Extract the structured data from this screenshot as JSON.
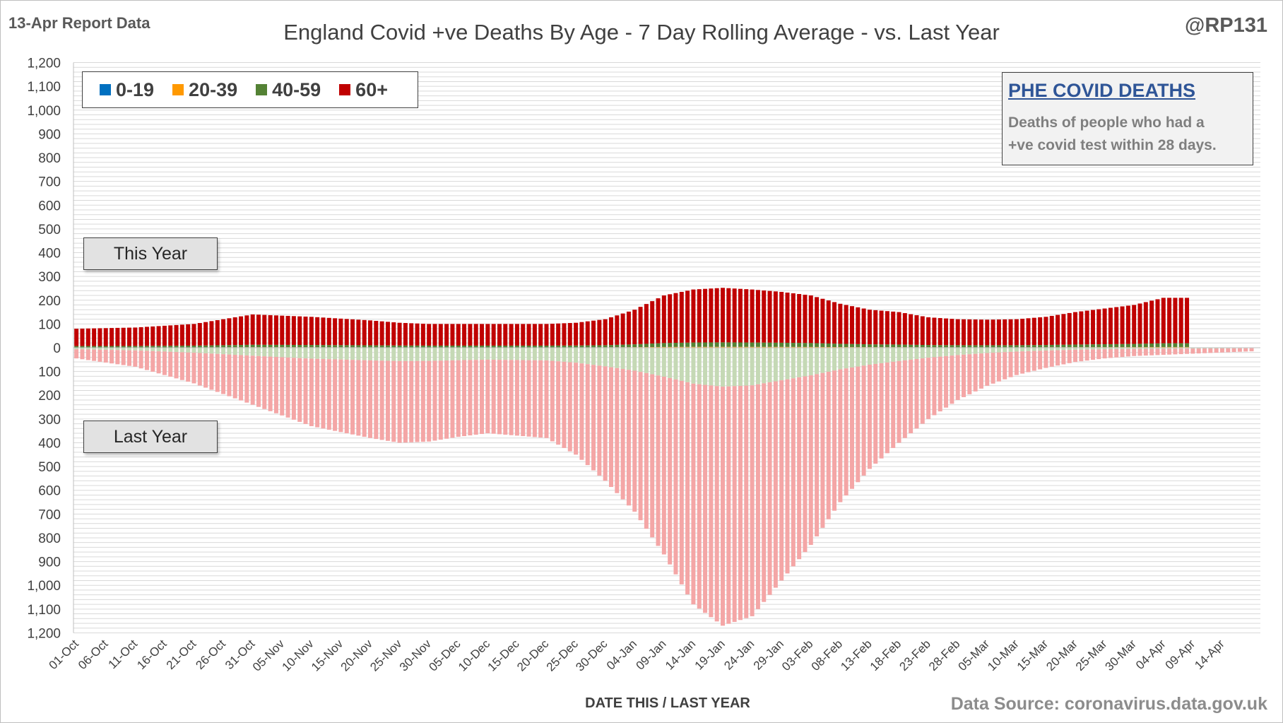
{
  "header": {
    "report_date": "13-Apr Report Data",
    "title": "England Covid +ve Deaths By Age - 7 Day Rolling Average - vs. Last Year",
    "handle": "@RP131"
  },
  "footer": {
    "source": "Data Source: coronavirus.data.gov.uk"
  },
  "annotations": {
    "this_year": "This Year",
    "last_year": "Last Year",
    "note_heading": "PHE COVID DEATHS",
    "note_line1": "Deaths of people who had a",
    "note_line2": "+ve covid test within 28 days."
  },
  "legend": [
    {
      "label": "0-19",
      "color": "#0070c0"
    },
    {
      "label": "20-39",
      "color": "#ff9900"
    },
    {
      "label": "40-59",
      "color": "#548235"
    },
    {
      "label": "60+",
      "color": "#c00000"
    }
  ],
  "chart_data": {
    "type": "bar",
    "title": "England Covid +ve Deaths By Age - 7 Day Rolling Average - vs. Last Year",
    "xlabel": "DATE THIS / LAST YEAR",
    "ylabel": "",
    "ylim": [
      -1200,
      1200
    ],
    "ytick_step": 100,
    "y_tick_labels": [
      "1,200",
      "1,100",
      "1,000",
      "900",
      "800",
      "700",
      "600",
      "500",
      "400",
      "300",
      "200",
      "100",
      "0",
      "100",
      "200",
      "300",
      "400",
      "500",
      "600",
      "700",
      "800",
      "900",
      "1,000",
      "1,100",
      "1,200"
    ],
    "x_tick_labels": [
      "01-Oct",
      "06-Oct",
      "11-Oct",
      "16-Oct",
      "21-Oct",
      "26-Oct",
      "31-Oct",
      "05-Nov",
      "10-Nov",
      "15-Nov",
      "20-Nov",
      "25-Nov",
      "30-Nov",
      "05-Dec",
      "10-Dec",
      "15-Dec",
      "20-Dec",
      "25-Dec",
      "30-Dec",
      "04-Jan",
      "09-Jan",
      "14-Jan",
      "19-Jan",
      "24-Jan",
      "29-Jan",
      "03-Feb",
      "08-Feb",
      "13-Feb",
      "18-Feb",
      "23-Feb",
      "28-Feb",
      "05-Mar",
      "10-Mar",
      "15-Mar",
      "20-Mar",
      "25-Mar",
      "30-Mar",
      "04-Apr",
      "09-Apr",
      "14-Apr"
    ],
    "x_start": "01-Oct",
    "x_tick_every_days": 5,
    "stacked": true,
    "this_year_total_anchors": [
      [
        "01-Oct",
        80
      ],
      [
        "11-Oct",
        85
      ],
      [
        "21-Oct",
        100
      ],
      [
        "31-Oct",
        140
      ],
      [
        "10-Nov",
        130
      ],
      [
        "20-Nov",
        115
      ],
      [
        "25-Nov",
        105
      ],
      [
        "30-Nov",
        100
      ],
      [
        "05-Dec",
        100
      ],
      [
        "10-Dec",
        100
      ],
      [
        "15-Dec",
        100
      ],
      [
        "20-Dec",
        100
      ],
      [
        "25-Dec",
        105
      ],
      [
        "30-Dec",
        120
      ],
      [
        "04-Jan",
        160
      ],
      [
        "09-Jan",
        220
      ],
      [
        "14-Jan",
        245
      ],
      [
        "19-Jan",
        252
      ],
      [
        "24-Jan",
        245
      ],
      [
        "29-Jan",
        235
      ],
      [
        "03-Feb",
        220
      ],
      [
        "08-Feb",
        185
      ],
      [
        "13-Feb",
        160
      ],
      [
        "18-Feb",
        150
      ],
      [
        "23-Feb",
        128
      ],
      [
        "28-Feb",
        120
      ],
      [
        "05-Mar",
        118
      ],
      [
        "10-Mar",
        120
      ],
      [
        "15-Mar",
        130
      ],
      [
        "20-Mar",
        150
      ],
      [
        "25-Mar",
        165
      ],
      [
        "30-Mar",
        180
      ],
      [
        "04-Apr",
        210
      ],
      [
        "08-Apr",
        210
      ]
    ],
    "this_year_share_by_age": {
      "0-19": 0.003,
      "20-39": 0.012,
      "40-59": 0.075,
      "60+": 0.91
    },
    "last_year_total_anchors": [
      [
        "01-Oct",
        45
      ],
      [
        "11-Oct",
        80
      ],
      [
        "21-Oct",
        150
      ],
      [
        "31-Oct",
        240
      ],
      [
        "10-Nov",
        330
      ],
      [
        "20-Nov",
        380
      ],
      [
        "25-Nov",
        400
      ],
      [
        "30-Nov",
        395
      ],
      [
        "05-Dec",
        375
      ],
      [
        "10-Dec",
        360
      ],
      [
        "15-Dec",
        370
      ],
      [
        "20-Dec",
        380
      ],
      [
        "25-Dec",
        450
      ],
      [
        "30-Dec",
        560
      ],
      [
        "04-Jan",
        690
      ],
      [
        "09-Jan",
        870
      ],
      [
        "14-Jan",
        1080
      ],
      [
        "19-Jan",
        1170
      ],
      [
        "24-Jan",
        1130
      ],
      [
        "29-Jan",
        980
      ],
      [
        "03-Feb",
        830
      ],
      [
        "08-Feb",
        650
      ],
      [
        "13-Feb",
        510
      ],
      [
        "18-Feb",
        400
      ],
      [
        "23-Feb",
        300
      ],
      [
        "28-Feb",
        220
      ],
      [
        "05-Mar",
        160
      ],
      [
        "10-Mar",
        115
      ],
      [
        "15-Mar",
        85
      ],
      [
        "20-Mar",
        60
      ],
      [
        "25-Mar",
        45
      ],
      [
        "30-Mar",
        35
      ],
      [
        "04-Apr",
        30
      ],
      [
        "09-Apr",
        25
      ],
      [
        "14-Apr",
        20
      ],
      [
        "19-Apr",
        15
      ]
    ],
    "last_year_share_by_age": {
      "60+": 0.86,
      "40-59": 0.14
    }
  }
}
